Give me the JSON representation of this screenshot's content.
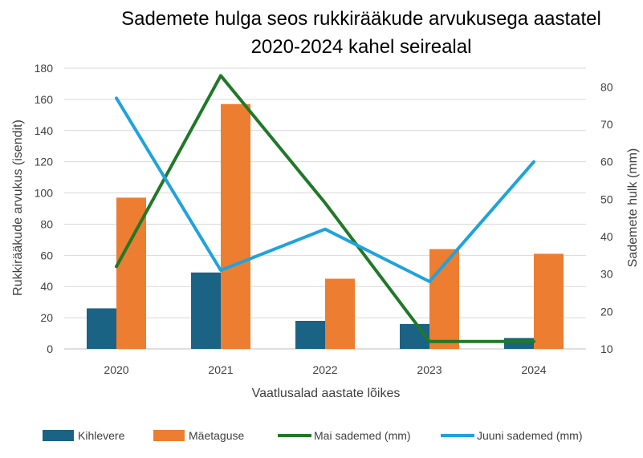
{
  "chart_data": {
    "type": "bar",
    "title_lines": [
      "Sademete hulga seos rukkirääkude arvukusega aastatel",
      "2020-2024 kahel seirealal"
    ],
    "xlabel": "Vaatlusalad aastate lõikes",
    "ylabel_left": "Rukkirääkude arvukus (isendit)",
    "ylabel_right": "Sademete hulk (mm)",
    "categories": [
      "2020",
      "2021",
      "2022",
      "2023",
      "2024"
    ],
    "ylim_left": [
      0,
      180
    ],
    "yticks_left": [
      0,
      20,
      40,
      60,
      80,
      100,
      120,
      140,
      160,
      180
    ],
    "ylim_right": [
      10,
      85
    ],
    "yticks_right": [
      10,
      20,
      30,
      40,
      50,
      60,
      70,
      80
    ],
    "grid": true,
    "legend_position": "bottom",
    "bar_series": [
      {
        "name": "Kihlevere",
        "color": "#1b6385",
        "values": [
          26,
          49,
          18,
          16,
          7
        ]
      },
      {
        "name": "Mäetaguse",
        "color": "#ed7d31",
        "values": [
          97,
          157,
          45,
          64,
          61
        ]
      }
    ],
    "line_series": [
      {
        "name": "Mai sademed (mm)",
        "color": "#217828",
        "axis": "right",
        "values": [
          32,
          83,
          49,
          12,
          12
        ]
      },
      {
        "name": "Juuni sademed (mm)",
        "color": "#1fa3dc",
        "axis": "right",
        "values": [
          77,
          31,
          42,
          28,
          60
        ]
      }
    ]
  }
}
